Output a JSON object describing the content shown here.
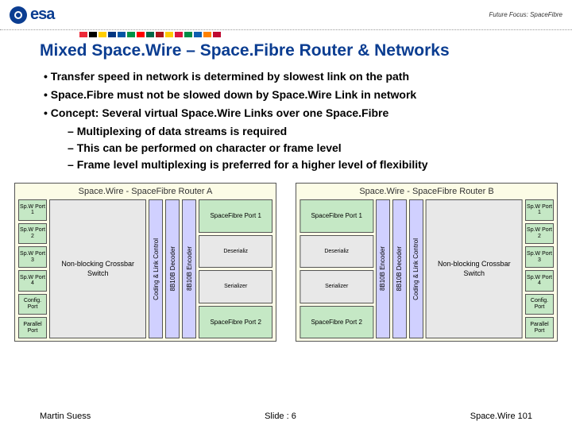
{
  "header": {
    "logo_text": "esa",
    "tagline": "Future Focus: SpaceFibre"
  },
  "flags": [
    "#ed2939",
    "#000",
    "#ffce00",
    "#003580",
    "#0055a4",
    "#009246",
    "#ff0000",
    "#006847",
    "#aa151b",
    "#fecb00",
    "#dc143c",
    "#008c45",
    "#0d5eaf",
    "#ff8200",
    "#bf0a30"
  ],
  "title": "Mixed Space.Wire – Space.Fibre Router & Networks",
  "bullets": [
    "Transfer speed in network is determined by slowest link on the path",
    "Space.Fibre must not be slowed down by Space.Wire Link in network",
    "Concept: Several virtual Space.Wire Links over one Space.Fibre"
  ],
  "sub_bullets": [
    "Multiplexing of data streams is required",
    "This can be performed on character or frame level",
    "Frame level multiplexing is preferred for a higher level of flexibility"
  ],
  "diagram": {
    "titleA": "Space.Wire - SpaceFibre Router A",
    "titleB": "Space.Wire - SpaceFibre Router B",
    "ports": [
      "Sp.W Port 1",
      "Sp.W Port 2",
      "Sp.W Port 3",
      "Sp.W Port 4",
      "Config. Port",
      "Parallel Port"
    ],
    "crossbar": "Non-blocking Crossbar Switch",
    "coding": "Coding & Link Control",
    "decoder": "8B10B Decoder",
    "encoder": "8B10B Encoder",
    "sf1": "SpaceFibre Port 1",
    "sf2": "SpaceFibre Port 2",
    "deser": "Deserializ",
    "ser": "Serializer"
  },
  "footer": {
    "left": "Martin Suess",
    "center": "Slide : 6",
    "right": "Space.Wire 101"
  },
  "colors": {
    "esa_blue": "#0b3d91",
    "diagram_bg": "#fcfce6",
    "port_green": "#c5e8c5",
    "block_blue": "#d0d0ff",
    "block_gray": "#e8e8e8"
  }
}
